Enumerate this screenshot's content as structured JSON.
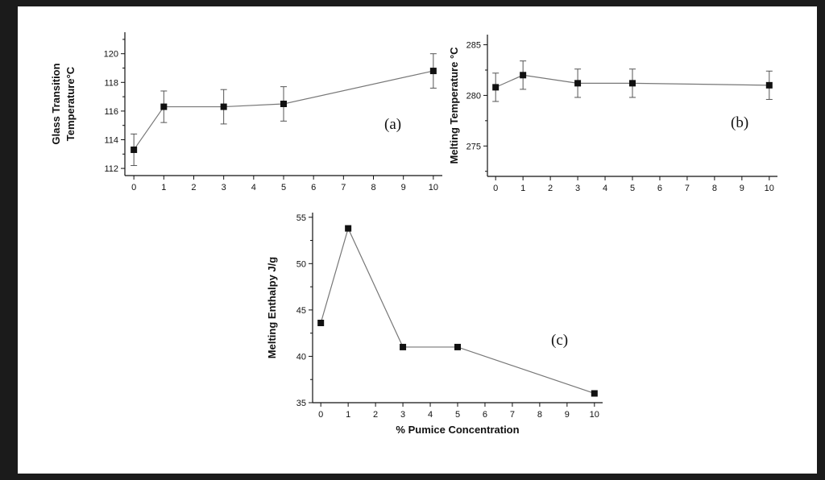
{
  "chart_data": [
    {
      "id": "a",
      "type": "line",
      "panel_label": "(a)",
      "ylabel_lines": [
        "Glass Transition",
        "Temperature°C"
      ],
      "xlabel": "",
      "x": [
        0,
        1,
        3,
        5,
        10
      ],
      "y": [
        113.3,
        116.3,
        116.3,
        116.5,
        118.8
      ],
      "yerr": [
        1.1,
        1.1,
        1.2,
        1.2,
        1.2
      ],
      "xlim": [
        -0.3,
        10.3
      ],
      "ylim": [
        111.5,
        121.5
      ],
      "xticks": [
        0,
        1,
        2,
        3,
        4,
        5,
        6,
        7,
        8,
        9,
        10
      ],
      "yticks": [
        112,
        114,
        116,
        118,
        120
      ],
      "marker": "square",
      "color": "#111111",
      "line_color": "#777777",
      "grid": false
    },
    {
      "id": "b",
      "type": "line",
      "panel_label": "(b)",
      "ylabel_lines": [
        "Melting Temperature °C"
      ],
      "xlabel": "",
      "x": [
        0,
        1,
        3,
        5,
        10
      ],
      "y": [
        280.8,
        282.0,
        281.2,
        281.2,
        281.0
      ],
      "yerr": [
        1.4,
        1.4,
        1.4,
        1.4,
        1.4
      ],
      "xlim": [
        -0.3,
        10.3
      ],
      "ylim": [
        272.0,
        286.0
      ],
      "xticks": [
        0,
        1,
        2,
        3,
        4,
        5,
        6,
        7,
        8,
        9,
        10
      ],
      "yticks": [
        275,
        280,
        285
      ],
      "marker": "square",
      "color": "#111111",
      "line_color": "#777777",
      "grid": false
    },
    {
      "id": "c",
      "type": "line",
      "panel_label": "(c)",
      "ylabel_lines": [
        "Melting Enthalpy J/g"
      ],
      "xlabel": "% Pumice Concentration",
      "x": [
        0,
        1,
        3,
        5,
        10
      ],
      "y": [
        43.6,
        53.8,
        41.0,
        41.0,
        36.0
      ],
      "yerr": [
        0,
        0,
        0,
        0,
        0
      ],
      "xlim": [
        -0.3,
        10.3
      ],
      "ylim": [
        35.0,
        55.5
      ],
      "xticks": [
        0,
        1,
        2,
        3,
        4,
        5,
        6,
        7,
        8,
        9,
        10
      ],
      "yticks": [
        35,
        40,
        45,
        50,
        55
      ],
      "marker": "square",
      "color": "#111111",
      "line_color": "#777777",
      "grid": false
    }
  ]
}
